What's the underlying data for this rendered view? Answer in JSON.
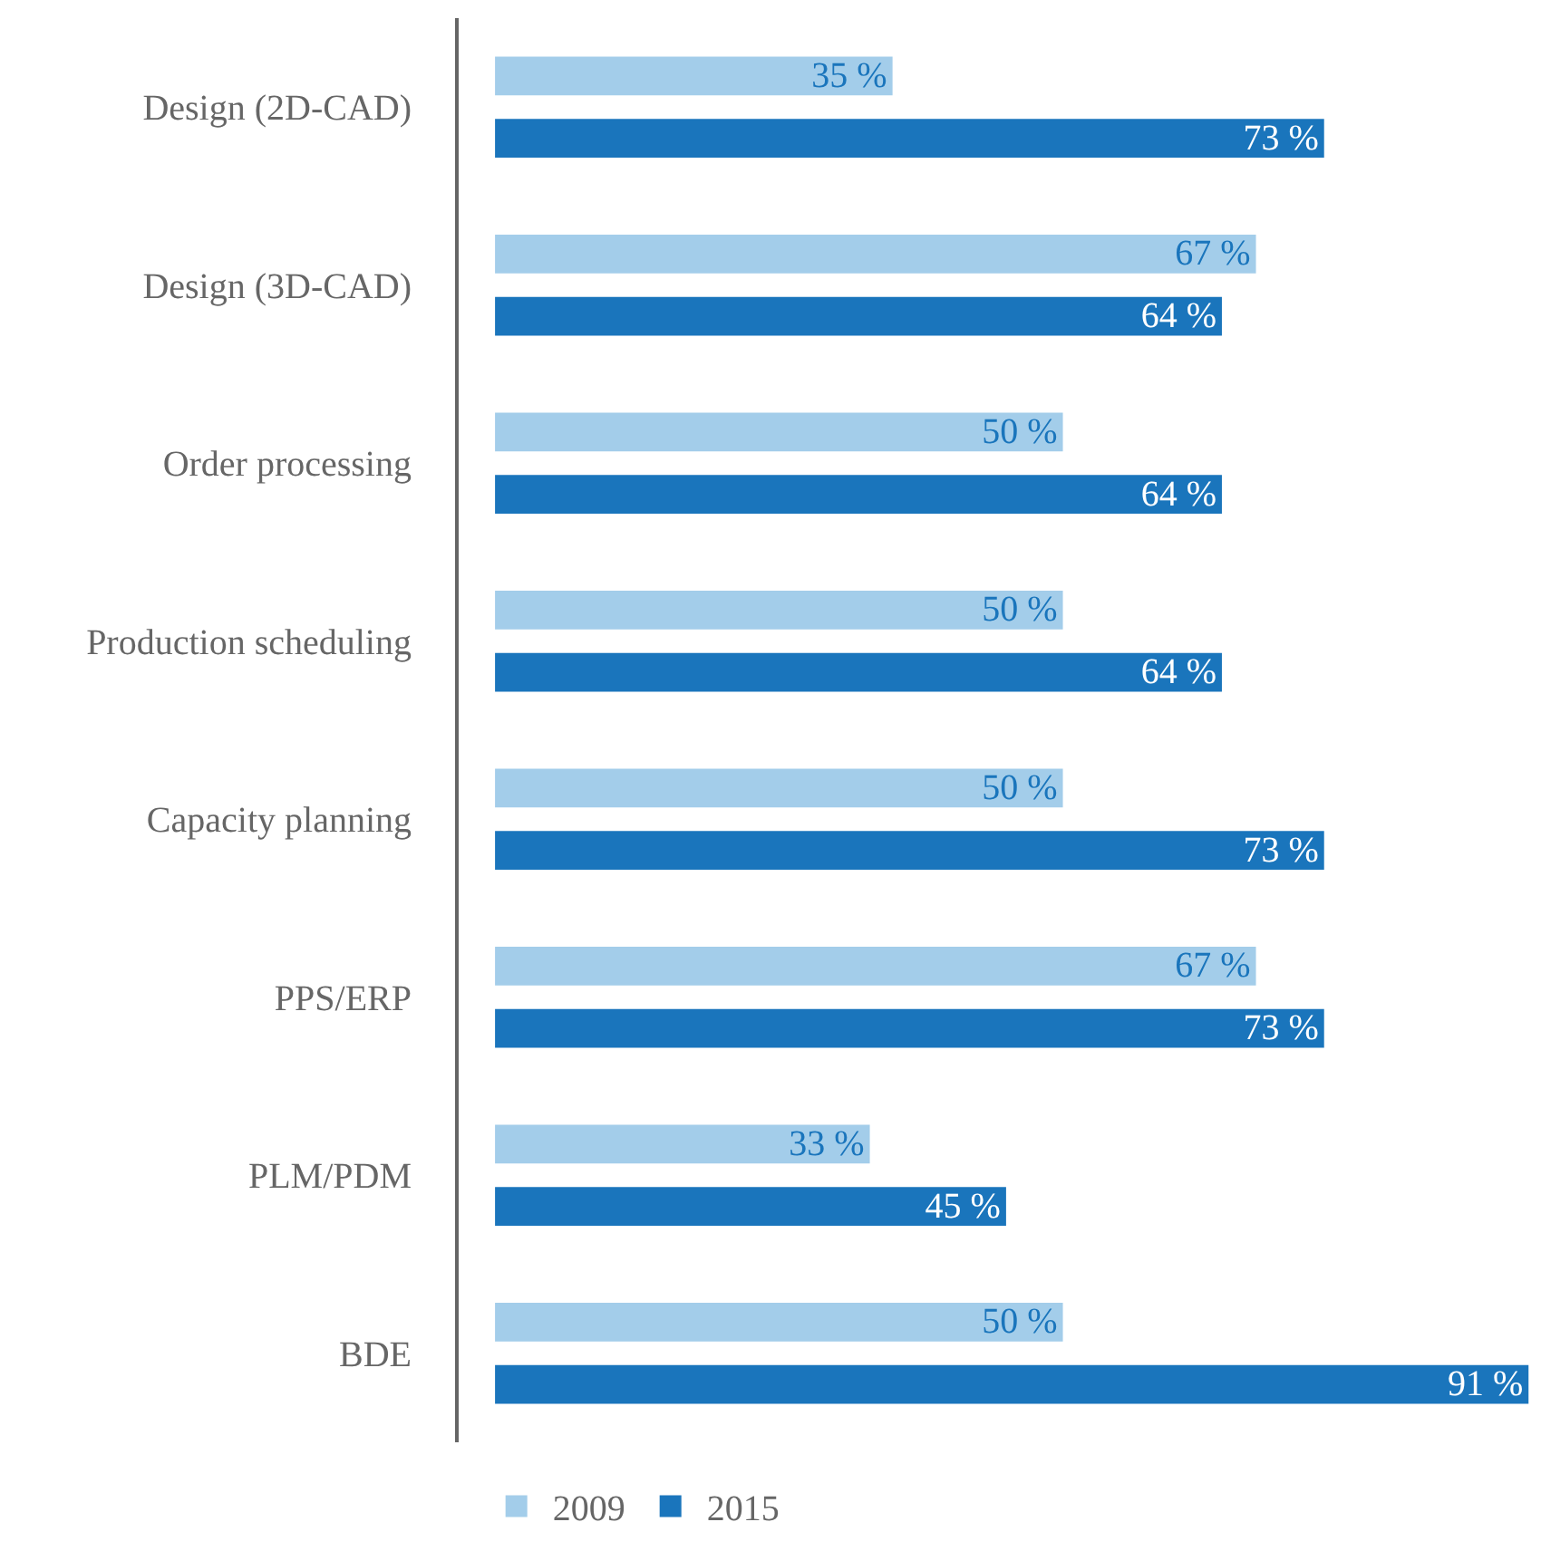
{
  "chart_data": {
    "type": "bar",
    "orientation": "horizontal",
    "categories": [
      "Design (2D-CAD)",
      "Design (3D-CAD)",
      "Order processing",
      "Production scheduling",
      "Capacity planning",
      "PPS/ERP",
      "PLM/PDM",
      "BDE"
    ],
    "series": [
      {
        "name": "2009",
        "color": "#a3cdea",
        "values": [
          35,
          67,
          50,
          50,
          50,
          67,
          33,
          50
        ],
        "value_labels": [
          "35 %",
          "67 %",
          "50 %",
          "50 %",
          "50 %",
          "67 %",
          "33 %",
          "50 %"
        ]
      },
      {
        "name": "2015",
        "color": "#1a75bc",
        "values": [
          73,
          64,
          64,
          64,
          73,
          73,
          45,
          91
        ],
        "value_labels": [
          "73 %",
          "64 %",
          "64 %",
          "64 %",
          "73 %",
          "73 %",
          "45 %",
          "91 %"
        ]
      }
    ],
    "xlim": [
      -3.2,
      91.3
    ],
    "tick_labels": "y",
    "legend": "bottom left"
  }
}
